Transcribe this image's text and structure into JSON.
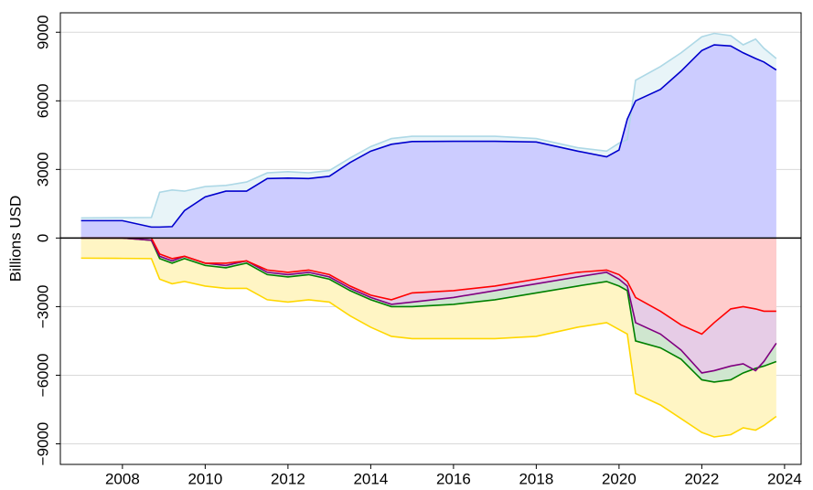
{
  "chart_data": {
    "type": "area",
    "ylabel": "Billions USD",
    "x": [
      2007.0,
      2008.0,
      2008.7,
      2008.9,
      2009.2,
      2009.5,
      2010.0,
      2010.5,
      2011.0,
      2011.5,
      2012.0,
      2012.5,
      2013.0,
      2013.5,
      2014.0,
      2014.5,
      2015.0,
      2016.0,
      2017.0,
      2018.0,
      2019.0,
      2019.7,
      2020.0,
      2020.2,
      2020.4,
      2021.0,
      2021.5,
      2022.0,
      2022.3,
      2022.7,
      2023.0,
      2023.3,
      2023.5,
      2023.8
    ],
    "series": [
      {
        "color": "#add8e6",
        "fill": "#e8f4f8",
        "values": [
          880,
          890,
          900,
          2000,
          2100,
          2050,
          2250,
          2300,
          2450,
          2850,
          2900,
          2850,
          2950,
          3500,
          4000,
          4350,
          4450,
          4450,
          4450,
          4350,
          3950,
          3800,
          4150,
          4300,
          6900,
          7500,
          8100,
          8800,
          8950,
          8850,
          8450,
          8700,
          8300,
          7850
        ]
      },
      {
        "color": "#0000cd",
        "fill": "#ccccff",
        "values": [
          760,
          760,
          480,
          480,
          500,
          1200,
          1800,
          2050,
          2050,
          2600,
          2620,
          2600,
          2700,
          3300,
          3800,
          4100,
          4220,
          4230,
          4230,
          4200,
          3800,
          3550,
          3850,
          5200,
          6000,
          6500,
          7300,
          8200,
          8450,
          8400,
          8100,
          7850,
          7700,
          7350
        ]
      },
      {
        "color": "#ffd700",
        "fill": "#fff5c4",
        "values": [
          -880,
          -890,
          -900,
          -1800,
          -2000,
          -1900,
          -2100,
          -2200,
          -2200,
          -2700,
          -2800,
          -2700,
          -2800,
          -3400,
          -3900,
          -4300,
          -4400,
          -4400,
          -4400,
          -4300,
          -3900,
          -3700,
          -4000,
          -4200,
          -6800,
          -7300,
          -7900,
          -8500,
          -8700,
          -8600,
          -8300,
          -8400,
          -8200,
          -7800
        ]
      },
      {
        "color": "#008000",
        "fill": "#cfe6cf",
        "values": [
          0,
          0,
          -100,
          -900,
          -1100,
          -900,
          -1200,
          -1300,
          -1100,
          -1600,
          -1700,
          -1600,
          -1800,
          -2300,
          -2700,
          -3000,
          -3000,
          -2900,
          -2700,
          -2400,
          -2100,
          -1900,
          -2100,
          -2300,
          -4500,
          -4800,
          -5300,
          -6200,
          -6300,
          -6200,
          -5900,
          -5700,
          -5600,
          -5400
        ]
      },
      {
        "color": "#800080",
        "fill": "#e6cce6",
        "values": [
          0,
          0,
          -100,
          -800,
          -1000,
          -800,
          -1100,
          -1200,
          -1000,
          -1500,
          -1600,
          -1500,
          -1700,
          -2200,
          -2600,
          -2900,
          -2800,
          -2600,
          -2300,
          -2000,
          -1700,
          -1500,
          -1800,
          -2100,
          -3700,
          -4200,
          -4900,
          -5900,
          -5800,
          -5600,
          -5500,
          -5800,
          -5400,
          -4600
        ]
      },
      {
        "color": "#ff0000",
        "fill": "#ffcccc",
        "values": [
          0,
          0,
          0,
          -700,
          -900,
          -800,
          -1100,
          -1100,
          -1000,
          -1400,
          -1500,
          -1400,
          -1600,
          -2100,
          -2500,
          -2700,
          -2400,
          -2300,
          -2100,
          -1800,
          -1500,
          -1400,
          -1600,
          -1900,
          -2600,
          -3200,
          -3800,
          -4200,
          -3700,
          -3100,
          -3000,
          -3100,
          -3200,
          -3200
        ]
      }
    ],
    "xlim": [
      2006.5,
      2024.4
    ],
    "ylim": [
      -9900,
      9850
    ],
    "xticks": [
      2008,
      2010,
      2012,
      2014,
      2016,
      2018,
      2020,
      2022,
      2024
    ],
    "yticks": [
      {
        "value": -9000,
        "label": "−9000"
      },
      {
        "value": -6000,
        "label": "−6000"
      },
      {
        "value": -3000,
        "label": "−3000"
      },
      0,
      3000,
      6000,
      9000
    ],
    "grid": true
  }
}
